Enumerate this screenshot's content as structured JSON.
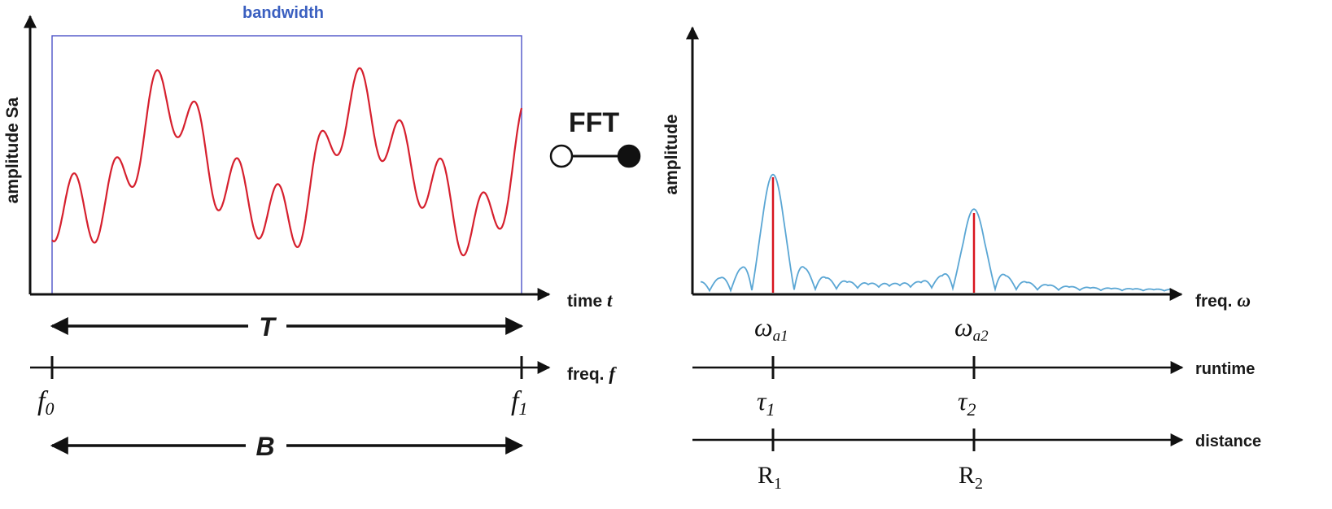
{
  "colors": {
    "axis": "#111111",
    "signal": "#d6202e",
    "spectrum": "#5aa6d4",
    "peak_line": "#d8141e",
    "bandwidth_box": "#4c52c8",
    "bandwidth_text": "#3a5fc0",
    "fft_symbol": "#111111"
  },
  "left_panel": {
    "bandwidth_label": "bandwidth",
    "y_axis_label": "amplitude Sa",
    "x_axis_label": {
      "text": "time ",
      "var": "t"
    },
    "period_label": "T",
    "freq_axis_label": {
      "text": "freq. ",
      "var": "f"
    },
    "f_start": {
      "base": "f",
      "sub": "0"
    },
    "f_end": {
      "base": "f",
      "sub": "1"
    },
    "bandwidth_span_label": "B"
  },
  "fft": {
    "label": "FFT",
    "symbol": "correspondence-icon"
  },
  "right_panel": {
    "y_axis_label": "amplitude",
    "x_axis_label": {
      "text": "freq. ",
      "var": "ω"
    },
    "peaks": [
      {
        "omega": {
          "base": "ω",
          "sub": "a1"
        },
        "tau": {
          "base": "τ",
          "sub": "1"
        },
        "range": {
          "base": "R",
          "sub": "1"
        },
        "relative_height": 1.0
      },
      {
        "omega": {
          "base": "ω",
          "sub": "a2"
        },
        "tau": {
          "base": "τ",
          "sub": "2"
        },
        "range": {
          "base": "R",
          "sub": "2"
        },
        "relative_height": 0.69
      }
    ],
    "runtime_label": "runtime",
    "distance_label": "distance"
  }
}
